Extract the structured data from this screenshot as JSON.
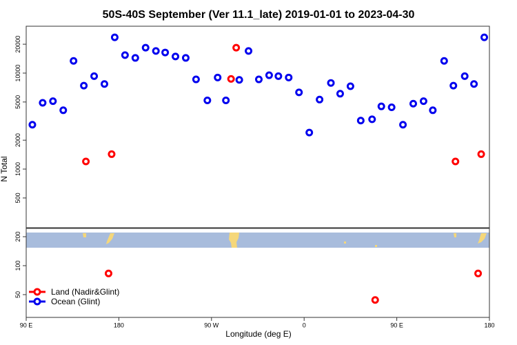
{
  "chart_data": [
    {
      "type": "scatter",
      "title": "50S-40S September (Ver 11.1_late)   2019-01-01 to 2023-04-30",
      "ylabel": "N Total",
      "log": true,
      "xlim": [
        90,
        540
      ],
      "ylim": [
        245,
        30800
      ],
      "yticks": [
        500,
        1000,
        2000,
        5000,
        10000,
        20000
      ],
      "series": [
        {
          "name": "Land (Nadir&Glint)",
          "color": "#ff0000",
          "x": [
            148,
            173,
            289,
            294,
            507,
            532
          ],
          "y": [
            1200,
            1430,
            8700,
            18400,
            1200,
            1430
          ]
        },
        {
          "name": "Ocean (Glint)",
          "color": "#0000ee",
          "x": [
            96,
            106,
            116,
            126,
            136,
            146,
            156,
            166,
            176,
            186,
            196,
            206,
            216,
            225,
            235,
            245,
            255,
            266,
            276,
            284,
            297,
            306,
            316,
            326,
            335,
            345,
            355,
            365,
            375,
            386,
            395,
            405,
            415,
            426,
            435,
            445,
            456,
            466,
            476,
            485,
            496,
            505,
            516,
            525,
            535
          ],
          "y": [
            2900,
            4900,
            5100,
            4100,
            13400,
            7400,
            9300,
            7700,
            23600,
            15400,
            14400,
            18400,
            17000,
            16400,
            14900,
            14400,
            8600,
            5200,
            9000,
            5200,
            8500,
            17000,
            8600,
            9500,
            9300,
            9000,
            6300,
            2400,
            5300,
            7900,
            6100,
            7300,
            3200,
            3300,
            4500,
            4400,
            2900,
            4800,
            5100,
            4100,
            13400,
            7400,
            9300,
            7700,
            23600
          ]
        }
      ]
    },
    {
      "type": "scatter",
      "xlabel": "Longitude (deg E)",
      "log": true,
      "xlim": [
        90,
        540
      ],
      "ylim": [
        29,
        244
      ],
      "yticks": [
        50,
        100,
        200
      ],
      "xticks": [
        {
          "value": 90,
          "label": "90 E"
        },
        180,
        {
          "value": 270,
          "label": "90 W"
        },
        {
          "value": 360,
          "label": "0"
        },
        {
          "value": 450,
          "label": "90 E"
        },
        {
          "value": 540,
          "label": "180"
        }
      ],
      "legend": "lower left",
      "series": [
        {
          "name": "Land (Nadir&Glint)",
          "color": "#ff0000",
          "x": [
            170,
            429,
            529
          ],
          "y": [
            83,
            44,
            83
          ]
        },
        {
          "name": "Ocean (Glint)",
          "color": "#0000ee",
          "x": [],
          "y": []
        }
      ]
    }
  ]
}
